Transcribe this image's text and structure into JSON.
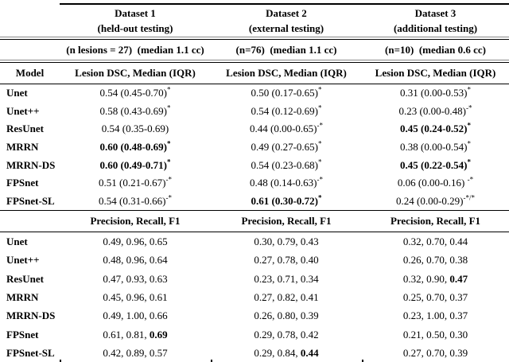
{
  "table": {
    "model_header": "Model",
    "datasets": [
      {
        "name": "Dataset 1",
        "subtitle": "(held-out testing)",
        "n_line": "(n lesions = 27)  (median 1.1 cc)",
        "dsc_header": "Lesion DSC, Median (IQR)",
        "prf_header": "Precision, Recall, F1"
      },
      {
        "name": "Dataset 2",
        "subtitle": "(external testing)",
        "n_line": "(n=76)  (median 1.1 cc)",
        "dsc_header": "Lesion DSC, Median (IQR)",
        "prf_header": "Precision, Recall, F1"
      },
      {
        "name": "Dataset 3",
        "subtitle": "(additional testing)",
        "n_line": "(n=10)  (median 0.6 cc)",
        "dsc_header": "Lesion DSC, Median (IQR)",
        "prf_header": "Precision, Recall, F1"
      }
    ],
    "dsc_rows": [
      {
        "model": "Unet",
        "cells": [
          {
            "text": "0.54 (0.45-0.70)",
            "sup": "*",
            "bold": false
          },
          {
            "text": "0.50 (0.17-0.65)",
            "sup": "*",
            "bold": false
          },
          {
            "text": "0.31 (0.00-0.53)",
            "sup": "*",
            "bold": false
          }
        ]
      },
      {
        "model": "Unet++",
        "cells": [
          {
            "text": "0.58 (0.43-0.69)",
            "sup": "*",
            "bold": false
          },
          {
            "text": "0.54 (0.12-0.69)",
            "sup": "*",
            "bold": false
          },
          {
            "text": "0.23 (0.00-0.48)",
            "sup": "-*",
            "bold": false
          }
        ]
      },
      {
        "model": "ResUnet",
        "cells": [
          {
            "text": "0.54 (0.35-0.69)",
            "sup": "",
            "bold": false
          },
          {
            "text": "0.44 (0.00-0.65)",
            "sup": "-*",
            "bold": false
          },
          {
            "text": "0.45 (0.24-0.52)",
            "sup": "*",
            "bold": true
          }
        ]
      },
      {
        "model": "MRRN",
        "cells": [
          {
            "text": "0.60 (0.48-0.69)",
            "sup": "*",
            "bold": true
          },
          {
            "text": "0.49 (0.27-0.65)",
            "sup": "*",
            "bold": false
          },
          {
            "text": "0.38 (0.00-0.54)",
            "sup": "*",
            "bold": false
          }
        ]
      },
      {
        "model": "MRRN-DS",
        "cells": [
          {
            "text": "0.60 (0.49-0.71)",
            "sup": "*",
            "bold": true
          },
          {
            "text": "0.54 (0.23-0.68)",
            "sup": "*",
            "bold": false
          },
          {
            "text": "0.45 (0.22-0.54)",
            "sup": "*",
            "bold": true
          }
        ]
      },
      {
        "model": "FPSnet",
        "cells": [
          {
            "text": "0.51 (0.21-0.67)",
            "sup": "-*",
            "bold": false
          },
          {
            "text": "0.48 (0.14-0.63)",
            "sup": "-*",
            "bold": false
          },
          {
            "text": "0.06 (0.00-0.16) ",
            "sup": "-*",
            "bold": false
          }
        ]
      },
      {
        "model": "FPSnet-SL",
        "cells": [
          {
            "text": "0.54 (0.31-0.66)",
            "sup": "-*",
            "bold": false
          },
          {
            "text": "0.61 (0.30-0.72)",
            "sup": "*",
            "bold": true
          },
          {
            "text": "0.24 (0.00-0.29)",
            "sup": "-*/*",
            "bold": false
          }
        ]
      }
    ],
    "prf_rows": [
      {
        "model": "Unet",
        "cells": [
          {
            "values": [
              "0.49",
              "0.96",
              "0.65"
            ],
            "bold_index": -1
          },
          {
            "values": [
              "0.30",
              "0.79",
              "0.43"
            ],
            "bold_index": -1
          },
          {
            "values": [
              "0.32",
              "0.70",
              "0.44"
            ],
            "bold_index": -1
          }
        ]
      },
      {
        "model": "Unet++",
        "cells": [
          {
            "values": [
              "0.48",
              "0.96",
              "0.64"
            ],
            "bold_index": -1
          },
          {
            "values": [
              "0.27",
              "0.78",
              "0.40"
            ],
            "bold_index": -1
          },
          {
            "values": [
              "0.26",
              "0.70",
              "0.38"
            ],
            "bold_index": -1
          }
        ]
      },
      {
        "model": "ResUnet",
        "cells": [
          {
            "values": [
              "0.47",
              "0.93",
              "0.63"
            ],
            "bold_index": -1
          },
          {
            "values": [
              "0.23",
              "0.71",
              "0.34"
            ],
            "bold_index": -1
          },
          {
            "values": [
              "0.32",
              "0.90",
              "0.47"
            ],
            "bold_index": 2
          }
        ]
      },
      {
        "model": "MRRN",
        "cells": [
          {
            "values": [
              "0.45",
              "0.96",
              "0.61"
            ],
            "bold_index": -1
          },
          {
            "values": [
              "0.27",
              "0.82",
              "0.41"
            ],
            "bold_index": -1
          },
          {
            "values": [
              "0.25",
              "0.70",
              "0.37"
            ],
            "bold_index": -1
          }
        ]
      },
      {
        "model": "MRRN-DS",
        "cells": [
          {
            "values": [
              "0.49",
              "1.00",
              "0.66"
            ],
            "bold_index": -1
          },
          {
            "values": [
              "0.26",
              "0.80",
              "0.39"
            ],
            "bold_index": -1
          },
          {
            "values": [
              "0.23",
              "1.00",
              "0.37"
            ],
            "bold_index": -1
          }
        ]
      },
      {
        "model": "FPSnet",
        "cells": [
          {
            "values": [
              "0.61",
              "0.81",
              "0.69"
            ],
            "bold_index": 2
          },
          {
            "values": [
              "0.29",
              "0.78",
              "0.42"
            ],
            "bold_index": -1
          },
          {
            "values": [
              "0.21",
              "0.50",
              "0.30"
            ],
            "bold_index": -1
          }
        ]
      },
      {
        "model": "FPSnet-SL",
        "cells": [
          {
            "values": [
              "0.42",
              "0.89",
              "0.57"
            ],
            "bold_index": -1
          },
          {
            "values": [
              "0.29",
              "0.84",
              "0.44"
            ],
            "bold_index": 2
          },
          {
            "values": [
              "0.27",
              "0.70",
              "0.39"
            ],
            "bold_index": -1
          }
        ]
      }
    ]
  }
}
